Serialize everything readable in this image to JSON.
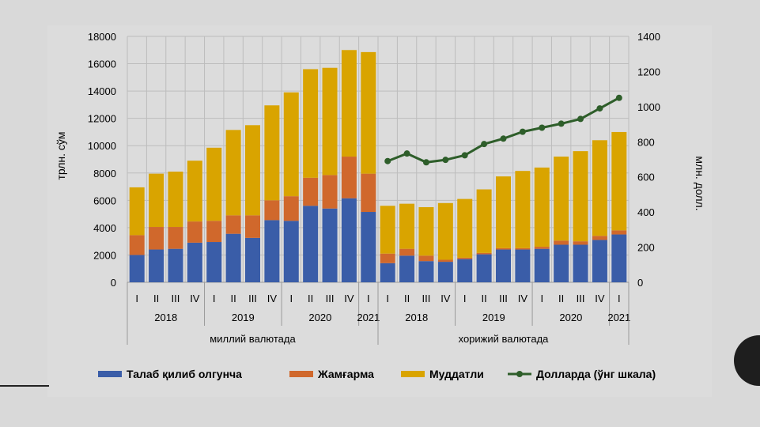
{
  "chart_data": {
    "type": "bar",
    "stacked": true,
    "groups": [
      {
        "label": "миллий валютада",
        "years": [
          {
            "label": "2018",
            "quarters": [
              "I",
              "II",
              "III",
              "IV"
            ]
          },
          {
            "label": "2019",
            "quarters": [
              "I",
              "II",
              "III",
              "IV"
            ]
          },
          {
            "label": "2020",
            "quarters": [
              "I",
              "II",
              "III",
              "IV"
            ]
          },
          {
            "label": "2021",
            "quarters": [
              "I"
            ]
          }
        ]
      },
      {
        "label": "хорижий валютада",
        "years": [
          {
            "label": "2018",
            "quarters": [
              "I",
              "II",
              "III",
              "IV"
            ]
          },
          {
            "label": "2019",
            "quarters": [
              "I",
              "II",
              "III",
              "IV"
            ]
          },
          {
            "label": "2020",
            "quarters": [
              "I",
              "II",
              "III",
              "IV"
            ]
          },
          {
            "label": "2021",
            "quarters": [
              "I"
            ]
          }
        ]
      }
    ],
    "series": [
      {
        "name": "Талаб қилиб олгунча",
        "color": "#3a5da8",
        "values": [
          2000,
          2400,
          2450,
          2900,
          2950,
          3550,
          3250,
          4550,
          4500,
          5600,
          5400,
          6150,
          5150,
          1400,
          1950,
          1550,
          1500,
          1700,
          2050,
          2400,
          2400,
          2450,
          2750,
          2750,
          3100,
          3500
        ]
      },
      {
        "name": "Жамғарма",
        "color": "#d0682c",
        "values": [
          1450,
          1650,
          1600,
          1550,
          1550,
          1350,
          1650,
          1450,
          1800,
          2050,
          2450,
          3050,
          2800,
          700,
          500,
          400,
          150,
          100,
          100,
          100,
          100,
          150,
          300,
          250,
          300,
          300
        ]
      },
      {
        "name": "Муддатли",
        "color": "#d9a400",
        "values": [
          3500,
          3900,
          4050,
          4450,
          5350,
          6250,
          6600,
          6950,
          7600,
          7950,
          7850,
          7800,
          8900,
          3500,
          3300,
          3550,
          4150,
          4300,
          4650,
          5250,
          5650,
          5800,
          6150,
          6600,
          7000,
          7200
        ]
      },
      {
        "name": "Долларда (ўнг шкала)",
        "type": "line",
        "axis": "right",
        "color": "#2e5e2a",
        "values": [
          690,
          733,
          683,
          697,
          723,
          787,
          818,
          857,
          880,
          903,
          930,
          990,
          1050
        ]
      }
    ],
    "ylim": [
      0,
      18000
    ],
    "yticks": [
      0,
      2000,
      4000,
      6000,
      8000,
      10000,
      12000,
      14000,
      16000,
      18000
    ],
    "ylabel": "трлн. сўм",
    "y2lim": [
      0,
      1400
    ],
    "y2ticks": [
      0,
      200,
      400,
      600,
      800,
      1000,
      1200,
      1400
    ],
    "y2label": "млн. долл.",
    "grid": true,
    "legend_position": "bottom"
  }
}
